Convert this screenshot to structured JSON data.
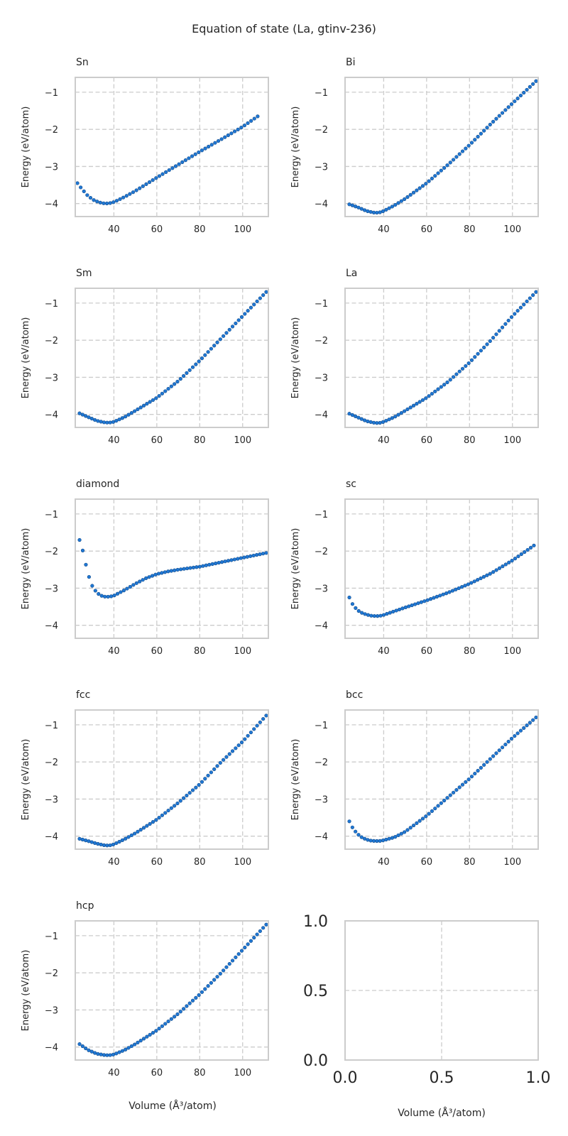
{
  "figure": {
    "title": "Equation of state (La, gtinv-236)",
    "xlabel": "Volume (Å³/atom)"
  },
  "chart_data": [
    {
      "type": "scatter",
      "title": "Sn",
      "ylabel": "Energy (eV/atom)",
      "xlim": [
        22,
        112
      ],
      "ylim": [
        -4.35,
        -0.6
      ],
      "xticks": [
        40,
        60,
        80,
        100
      ],
      "yticks": [
        -1,
        -2,
        -3,
        -4
      ],
      "xtick_labels": [
        "40",
        "60",
        "80",
        "100"
      ],
      "ytick_labels": [
        "−1",
        "−2",
        "−3",
        "−4"
      ],
      "x_range": [
        23,
        107
      ],
      "n_points": 56,
      "curve_x": [
        23,
        25,
        28,
        31,
        34,
        36,
        38,
        40,
        45,
        50,
        60,
        70,
        80,
        90,
        100,
        107
      ],
      "curve_y": [
        -3.45,
        -3.6,
        -3.8,
        -3.92,
        -3.98,
        -4.0,
        -3.99,
        -3.96,
        -3.82,
        -3.66,
        -3.3,
        -2.95,
        -2.6,
        -2.27,
        -1.93,
        -1.65
      ]
    },
    {
      "type": "scatter",
      "title": "Bi",
      "ylabel": "Energy (eV/atom)",
      "xlim": [
        22,
        112
      ],
      "ylim": [
        -4.35,
        -0.6
      ],
      "xticks": [
        40,
        60,
        80,
        100
      ],
      "yticks": [
        -1,
        -2,
        -3,
        -4
      ],
      "xtick_labels": [
        "40",
        "60",
        "80",
        "100"
      ],
      "ytick_labels": [
        "−1",
        "−2",
        "−3",
        "−4"
      ],
      "x_range": [
        24,
        111
      ],
      "n_points": 62,
      "curve_x": [
        24,
        28,
        32,
        36,
        38,
        40,
        45,
        50,
        60,
        70,
        80,
        90,
        100,
        111
      ],
      "curve_y": [
        -4.02,
        -4.1,
        -4.2,
        -4.25,
        -4.24,
        -4.2,
        -4.05,
        -3.87,
        -3.45,
        -2.95,
        -2.42,
        -1.85,
        -1.3,
        -0.7
      ]
    },
    {
      "type": "scatter",
      "title": "Sm",
      "ylabel": "Energy (eV/atom)",
      "xlim": [
        22,
        112
      ],
      "ylim": [
        -4.35,
        -0.6
      ],
      "xticks": [
        40,
        60,
        80,
        100
      ],
      "yticks": [
        -1,
        -2,
        -3,
        -4
      ],
      "xtick_labels": [
        "40",
        "60",
        "80",
        "100"
      ],
      "ytick_labels": [
        "−1",
        "−2",
        "−3",
        "−4"
      ],
      "x_range": [
        24,
        111
      ],
      "n_points": 62,
      "curve_x": [
        24,
        28,
        32,
        36,
        38,
        40,
        45,
        50,
        60,
        70,
        80,
        90,
        100,
        111
      ],
      "curve_y": [
        -3.97,
        -4.07,
        -4.17,
        -4.22,
        -4.22,
        -4.2,
        -4.07,
        -3.9,
        -3.55,
        -3.1,
        -2.55,
        -1.95,
        -1.35,
        -0.7
      ]
    },
    {
      "type": "scatter",
      "title": "La",
      "ylabel": "Energy (eV/atom)",
      "xlim": [
        22,
        112
      ],
      "ylim": [
        -4.35,
        -0.6
      ],
      "xticks": [
        40,
        60,
        80,
        100
      ],
      "yticks": [
        -1,
        -2,
        -3,
        -4
      ],
      "xtick_labels": [
        "40",
        "60",
        "80",
        "100"
      ],
      "ytick_labels": [
        "−1",
        "−2",
        "−3",
        "−4"
      ],
      "x_range": [
        24,
        111
      ],
      "n_points": 62,
      "curve_x": [
        24,
        28,
        32,
        36,
        38,
        40,
        45,
        50,
        60,
        70,
        80,
        90,
        100,
        111
      ],
      "curve_y": [
        -3.98,
        -4.08,
        -4.18,
        -4.23,
        -4.23,
        -4.2,
        -4.07,
        -3.9,
        -3.55,
        -3.12,
        -2.6,
        -2.0,
        -1.35,
        -0.7
      ]
    },
    {
      "type": "scatter",
      "title": "diamond",
      "ylabel": "Energy (eV/atom)",
      "xlim": [
        22,
        112
      ],
      "ylim": [
        -4.35,
        -0.6
      ],
      "xticks": [
        40,
        60,
        80,
        100
      ],
      "yticks": [
        -1,
        -2,
        -3,
        -4
      ],
      "xtick_labels": [
        "40",
        "60",
        "80",
        "100"
      ],
      "ytick_labels": [
        "−1",
        "−2",
        "−3",
        "−4"
      ],
      "x_range": [
        24,
        111
      ],
      "n_points": 60,
      "curve_x": [
        24,
        25,
        26,
        27,
        28,
        29,
        30,
        32,
        34,
        36,
        38,
        40,
        45,
        50,
        55,
        60,
        65,
        70,
        80,
        90,
        100,
        111
      ],
      "curve_y": [
        -1.7,
        -1.88,
        -2.1,
        -2.38,
        -2.62,
        -2.8,
        -2.95,
        -3.12,
        -3.2,
        -3.23,
        -3.23,
        -3.2,
        -3.05,
        -2.88,
        -2.73,
        -2.62,
        -2.55,
        -2.5,
        -2.42,
        -2.3,
        -2.18,
        -2.05
      ]
    },
    {
      "type": "scatter",
      "title": "sc",
      "ylabel": "Energy (eV/atom)",
      "xlim": [
        22,
        112
      ],
      "ylim": [
        -4.35,
        -0.6
      ],
      "xticks": [
        40,
        60,
        80,
        100
      ],
      "yticks": [
        -1,
        -2,
        -3,
        -4
      ],
      "xtick_labels": [
        "40",
        "60",
        "80",
        "100"
      ],
      "ytick_labels": [
        "−1",
        "−2",
        "−3",
        "−4"
      ],
      "x_range": [
        24,
        110
      ],
      "n_points": 60,
      "curve_x": [
        24,
        25,
        26,
        28,
        30,
        32,
        34,
        36,
        38,
        40,
        45,
        50,
        60,
        70,
        80,
        90,
        100,
        110
      ],
      "curve_y": [
        -3.25,
        -3.38,
        -3.48,
        -3.6,
        -3.67,
        -3.71,
        -3.74,
        -3.75,
        -3.75,
        -3.72,
        -3.62,
        -3.52,
        -3.33,
        -3.12,
        -2.88,
        -2.6,
        -2.25,
        -1.85
      ]
    },
    {
      "type": "scatter",
      "title": "fcc",
      "ylabel": "Energy (eV/atom)",
      "xlim": [
        22,
        112
      ],
      "ylim": [
        -4.35,
        -0.6
      ],
      "xticks": [
        40,
        60,
        80,
        100
      ],
      "yticks": [
        -1,
        -2,
        -3,
        -4
      ],
      "xtick_labels": [
        "40",
        "60",
        "80",
        "100"
      ],
      "ytick_labels": [
        "−1",
        "−2",
        "−3",
        "−4"
      ],
      "x_range": [
        24,
        111
      ],
      "n_points": 62,
      "curve_x": [
        24,
        28,
        32,
        36,
        38,
        40,
        45,
        50,
        60,
        70,
        80,
        90,
        100,
        111
      ],
      "curve_y": [
        -4.07,
        -4.13,
        -4.2,
        -4.25,
        -4.25,
        -4.22,
        -4.08,
        -3.92,
        -3.55,
        -3.1,
        -2.6,
        -2.0,
        -1.45,
        -0.75
      ]
    },
    {
      "type": "scatter",
      "title": "bcc",
      "ylabel": "Energy (eV/atom)",
      "xlim": [
        22,
        112
      ],
      "ylim": [
        -4.35,
        -0.6
      ],
      "xticks": [
        40,
        60,
        80,
        100
      ],
      "yticks": [
        -1,
        -2,
        -3,
        -4
      ],
      "xtick_labels": [
        "40",
        "60",
        "80",
        "100"
      ],
      "ytick_labels": [
        "−1",
        "−2",
        "−3",
        "−4"
      ],
      "x_range": [
        24,
        111
      ],
      "n_points": 62,
      "curve_x": [
        24,
        25,
        26,
        28,
        30,
        32,
        34,
        36,
        38,
        40,
        45,
        50,
        60,
        70,
        80,
        90,
        100,
        111
      ],
      "curve_y": [
        -3.6,
        -3.72,
        -3.82,
        -3.95,
        -4.04,
        -4.09,
        -4.12,
        -4.13,
        -4.13,
        -4.11,
        -4.03,
        -3.88,
        -3.45,
        -2.95,
        -2.45,
        -1.9,
        -1.35,
        -0.8
      ]
    },
    {
      "type": "scatter",
      "title": "hcp",
      "ylabel": "Energy (eV/atom)",
      "xlim": [
        22,
        112
      ],
      "ylim": [
        -4.35,
        -0.6
      ],
      "xticks": [
        40,
        60,
        80,
        100
      ],
      "yticks": [
        -1,
        -2,
        -3,
        -4
      ],
      "xtick_labels": [
        "40",
        "60",
        "80",
        "100"
      ],
      "ytick_labels": [
        "−1",
        "−2",
        "−3",
        "−4"
      ],
      "x_range": [
        24,
        111
      ],
      "n_points": 62,
      "curve_x": [
        24,
        28,
        32,
        36,
        38,
        40,
        45,
        50,
        60,
        70,
        80,
        90,
        100,
        111
      ],
      "curve_y": [
        -3.92,
        -4.08,
        -4.18,
        -4.22,
        -4.22,
        -4.2,
        -4.08,
        -3.92,
        -3.55,
        -3.1,
        -2.58,
        -2.0,
        -1.38,
        -0.7
      ]
    },
    {
      "type": "scatter",
      "title": "",
      "ylabel": "",
      "xlim": [
        0,
        1
      ],
      "ylim": [
        0,
        1
      ],
      "xticks": [
        0.0,
        0.5,
        1.0
      ],
      "yticks": [
        1.0,
        0.5,
        0.0
      ],
      "xtick_labels": [
        "0.0",
        "0.5",
        "1.0"
      ],
      "ytick_labels": [
        "1.0",
        "0.5",
        "0.0"
      ],
      "grid": "at 0.5 only",
      "empty": true
    }
  ]
}
